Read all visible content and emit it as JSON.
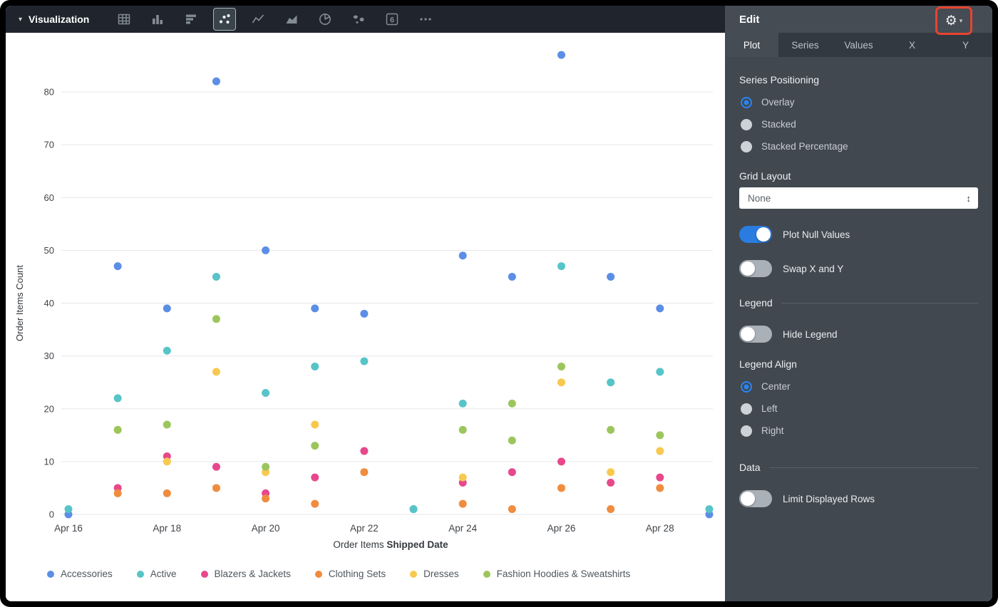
{
  "colors": {
    "accent_blue": "#2a7ce0",
    "radio_blue": "#2a84ee",
    "highlight_red": "#e8442e",
    "toolbar_bg": "#20252d",
    "panel_bg": "#414850"
  },
  "icons": {
    "gear": "⚙",
    "caret_down": "▾",
    "updown": "↕",
    "single_value_glyph": "6"
  },
  "toolbar": {
    "title": "Visualization",
    "icons": [
      {
        "name": "table",
        "selected": false
      },
      {
        "name": "column-chart",
        "selected": false
      },
      {
        "name": "bar-chart",
        "selected": false
      },
      {
        "name": "scatter-chart",
        "selected": true
      },
      {
        "name": "line-chart",
        "selected": false
      },
      {
        "name": "area-chart",
        "selected": false
      },
      {
        "name": "pie-chart",
        "selected": false
      },
      {
        "name": "map",
        "selected": false
      },
      {
        "name": "single-value",
        "selected": false
      },
      {
        "name": "more",
        "selected": false
      }
    ]
  },
  "edit_panel": {
    "title": "Edit",
    "tabs": [
      {
        "label": "Plot",
        "active": true
      },
      {
        "label": "Series",
        "active": false
      },
      {
        "label": "Values",
        "active": false
      },
      {
        "label": "X",
        "active": false
      },
      {
        "label": "Y",
        "active": false
      }
    ],
    "series_positioning": {
      "label": "Series Positioning",
      "options": [
        {
          "label": "Overlay",
          "selected": true
        },
        {
          "label": "Stacked",
          "selected": false
        },
        {
          "label": "Stacked Percentage",
          "selected": false
        }
      ]
    },
    "grid_layout": {
      "label": "Grid Layout",
      "value": "None"
    },
    "plot_null_values": {
      "label": "Plot Null Values",
      "on": true
    },
    "swap_x_y": {
      "label": "Swap X and Y",
      "on": false
    },
    "legend_section": {
      "label": "Legend"
    },
    "hide_legend": {
      "label": "Hide Legend",
      "on": false
    },
    "legend_align": {
      "label": "Legend Align",
      "options": [
        {
          "label": "Center",
          "selected": true
        },
        {
          "label": "Left",
          "selected": false
        },
        {
          "label": "Right",
          "selected": false
        }
      ]
    },
    "data_section": {
      "label": "Data"
    },
    "limit_displayed_rows": {
      "label": "Limit Displayed Rows",
      "on": false
    }
  },
  "chart_data": {
    "type": "scatter",
    "ylabel": "Order Items Count",
    "xlabel_prefix": "Order Items",
    "xlabel_bold": "Shipped Date",
    "y_ticks": [
      0,
      10,
      20,
      30,
      40,
      50,
      60,
      70,
      80
    ],
    "ylim": [
      0,
      88
    ],
    "x_ticks": [
      "Apr 16",
      "Apr 18",
      "Apr 20",
      "Apr 22",
      "Apr 24",
      "Apr 26",
      "Apr 28"
    ],
    "x_tick_days": [
      16,
      18,
      20,
      22,
      24,
      26,
      28
    ],
    "x_domain": [
      16,
      29
    ],
    "grid": true,
    "legend_position": "bottom",
    "series": [
      {
        "name": "Accessories",
        "color": "#5c8ee6",
        "points": [
          [
            16,
            0
          ],
          [
            17,
            47
          ],
          [
            18,
            39
          ],
          [
            19,
            82
          ],
          [
            20,
            50
          ],
          [
            21,
            39
          ],
          [
            22,
            38
          ],
          [
            23,
            1
          ],
          [
            24,
            49
          ],
          [
            25,
            45
          ],
          [
            26,
            87
          ],
          [
            27,
            45
          ],
          [
            28,
            39
          ],
          [
            29,
            0
          ]
        ]
      },
      {
        "name": "Active",
        "color": "#57c4c8",
        "points": [
          [
            16,
            1
          ],
          [
            17,
            22
          ],
          [
            18,
            31
          ],
          [
            19,
            45
          ],
          [
            20,
            23
          ],
          [
            21,
            28
          ],
          [
            22,
            29
          ],
          [
            23,
            1
          ],
          [
            24,
            21
          ],
          [
            26,
            47
          ],
          [
            27,
            25
          ],
          [
            28,
            27
          ],
          [
            29,
            1
          ]
        ]
      },
      {
        "name": "Blazers & Jackets",
        "color": "#e8488b",
        "points": [
          [
            17,
            5
          ],
          [
            18,
            11
          ],
          [
            19,
            9
          ],
          [
            20,
            4
          ],
          [
            21,
            7
          ],
          [
            22,
            12
          ],
          [
            24,
            6
          ],
          [
            25,
            8
          ],
          [
            26,
            10
          ],
          [
            27,
            6
          ],
          [
            28,
            7
          ]
        ]
      },
      {
        "name": "Clothing Sets",
        "color": "#f08c3e",
        "points": [
          [
            17,
            4
          ],
          [
            18,
            4
          ],
          [
            19,
            5
          ],
          [
            20,
            3
          ],
          [
            21,
            2
          ],
          [
            22,
            8
          ],
          [
            24,
            2
          ],
          [
            25,
            1
          ],
          [
            26,
            5
          ],
          [
            27,
            1
          ],
          [
            28,
            5
          ]
        ]
      },
      {
        "name": "Dresses",
        "color": "#f7c94e",
        "points": [
          [
            17,
            16
          ],
          [
            18,
            10
          ],
          [
            19,
            27
          ],
          [
            20,
            8
          ],
          [
            21,
            17
          ],
          [
            24,
            7
          ],
          [
            26,
            25
          ],
          [
            27,
            8
          ],
          [
            28,
            12
          ]
        ]
      },
      {
        "name": "Fashion Hoodies & Sweatshirts",
        "color": "#9cc65c",
        "points": [
          [
            17,
            16
          ],
          [
            18,
            17
          ],
          [
            19,
            37
          ],
          [
            20,
            9
          ],
          [
            21,
            13
          ],
          [
            24,
            16
          ],
          [
            25,
            21
          ],
          [
            25,
            14
          ],
          [
            26,
            28
          ],
          [
            27,
            16
          ],
          [
            28,
            15
          ]
        ]
      }
    ]
  }
}
